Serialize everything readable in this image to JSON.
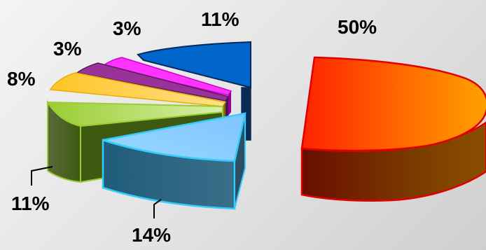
{
  "chart_data": {
    "type": "pie",
    "title": "",
    "slices": [
      {
        "label": "50%",
        "value": 50,
        "color": "#ff2a00"
      },
      {
        "label": "14%",
        "value": 14,
        "color": "#66ccff"
      },
      {
        "label": "11%",
        "value": 11,
        "color": "#9acd32"
      },
      {
        "label": "8%",
        "value": 8,
        "color": "#ffcc33"
      },
      {
        "label": "3%",
        "value": 3,
        "color": "#993399"
      },
      {
        "label": "3%",
        "value": 3,
        "color": "#ff33ff"
      },
      {
        "label": "11%",
        "value": 11,
        "color": "#0066cc"
      }
    ],
    "legend": "none",
    "exploded": true,
    "style": "3d"
  }
}
